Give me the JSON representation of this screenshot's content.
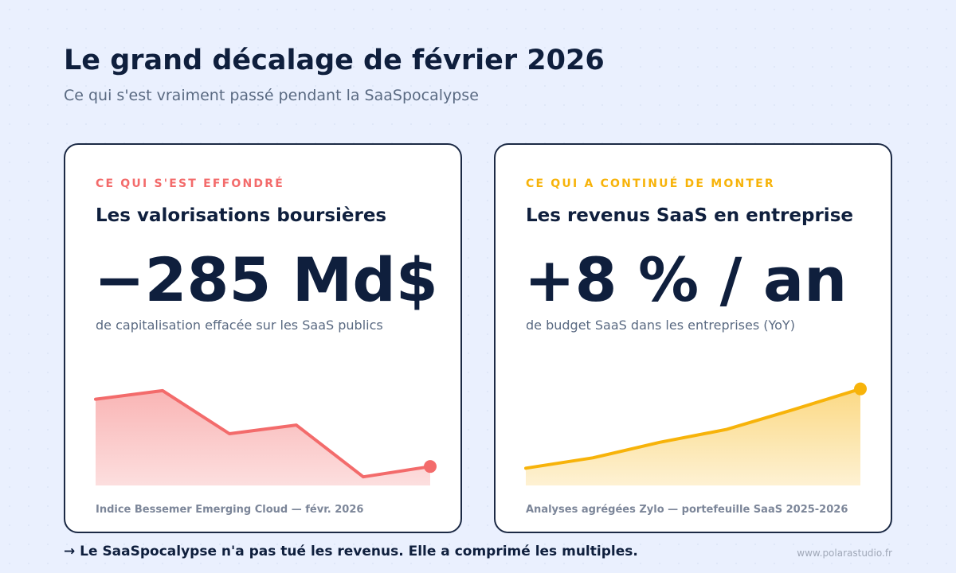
{
  "header": {
    "title": "Le grand décalage de février 2026",
    "subtitle": "Ce qui s'est vraiment passé pendant la SaaSpocalypse"
  },
  "cards": [
    {
      "eyebrow": "CE QUI S'EST EFFONDRÉ",
      "heading": "Les valorisations boursières",
      "big_value": "−285 Md$",
      "description": "de capitalisation effacée sur les SaaS publics",
      "source": "Indice Bessemer Emerging Cloud — févr. 2026"
    },
    {
      "eyebrow": "CE QUI A CONTINUÉ DE MONTER",
      "heading": "Les revenus SaaS en entreprise",
      "big_value": "+8 % / an",
      "description": "de budget SaaS dans les entreprises (YoY)",
      "source": "Analyses agrégées Zylo — portefeuille SaaS 2025-2026"
    }
  ],
  "footer": {
    "tagline": "→ Le SaaSpocalypse n'a pas tué les revenus. Elle a comprimé les multiples.",
    "url": "www.polarastudio.fr"
  },
  "colors": {
    "background": "#eaf0fe",
    "ink": "#0f1f3d",
    "muted": "#5a6a82",
    "decline": "#f36b6b",
    "growth": "#f7b30a"
  },
  "chart_data": [
    {
      "type": "area",
      "title": "",
      "x": [
        0,
        1,
        2,
        3,
        4,
        5
      ],
      "values": [
        100,
        110,
        60,
        70,
        10,
        22
      ],
      "ylim": [
        0,
        120
      ],
      "grid": false,
      "color": "#f36b6b",
      "end_marker": true
    },
    {
      "type": "area",
      "title": "",
      "x": [
        0,
        1,
        2,
        3,
        4,
        5
      ],
      "values": [
        20,
        32,
        50,
        65,
        88,
        112
      ],
      "ylim": [
        0,
        120
      ],
      "grid": false,
      "color": "#f7b30a",
      "end_marker": true
    }
  ]
}
